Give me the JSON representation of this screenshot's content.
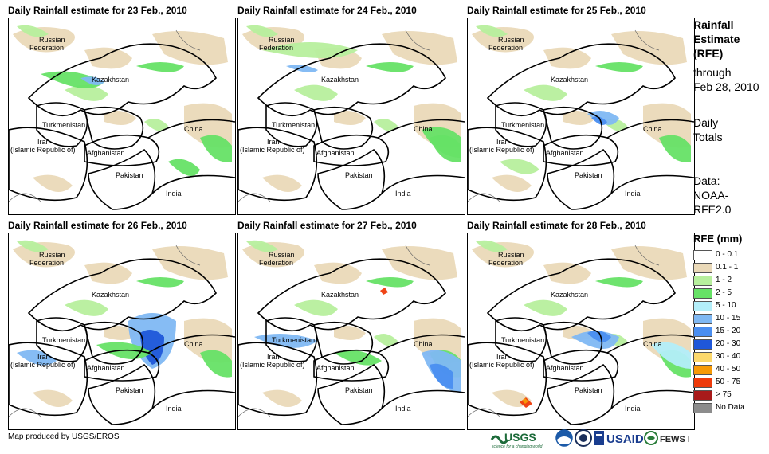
{
  "panels": [
    {
      "title": "Daily Rainfall estimate for 23 Feb., 2010"
    },
    {
      "title": "Daily Rainfall estimate for 24 Feb., 2010"
    },
    {
      "title": "Daily Rainfall estimate for 25 Feb., 2010"
    },
    {
      "title": "Daily Rainfall estimate for 26 Feb., 2010"
    },
    {
      "title": "Daily Rainfall estimate for 27 Feb., 2010"
    },
    {
      "title": "Daily Rainfall estimate for 28 Feb., 2010"
    }
  ],
  "map_labels": {
    "russia_1": "Russian",
    "russia_2": "Federation",
    "kazakhstan": "Kazakhstan",
    "turkmenistan": "Turkmenistan",
    "china": "China",
    "iran_1": "Iran",
    "iran_2": "(Islamic Republic of)",
    "afghanistan": "Afghanistan",
    "pakistan": "Pakistan",
    "india": "India"
  },
  "side": {
    "title_1": "Rainfall",
    "title_2": "Estimate",
    "title_3": "(RFE)",
    "through": "through",
    "date": "Feb 28, 2010",
    "daily": "Daily",
    "totals": "Totals",
    "data": "Data:",
    "source_1": "NOAA-",
    "source_2": "RFE2.0"
  },
  "legend": {
    "title": "RFE (mm)",
    "items": [
      {
        "label": "0 - 0.1",
        "color": "#ffffff"
      },
      {
        "label": "0.1 - 1",
        "color": "#ead9b8"
      },
      {
        "label": "1 - 2",
        "color": "#b7ef9d"
      },
      {
        "label": "2 - 5",
        "color": "#66e266"
      },
      {
        "label": "5 - 10",
        "color": "#b3eef9"
      },
      {
        "label": "10 - 15",
        "color": "#7fb8f3"
      },
      {
        "label": "15 - 20",
        "color": "#4a8ef0"
      },
      {
        "label": "20 - 30",
        "color": "#1f57d9"
      },
      {
        "label": "30 - 40",
        "color": "#fcd86b"
      },
      {
        "label": "40 - 50",
        "color": "#f79a06"
      },
      {
        "label": "50 - 75",
        "color": "#ee3a0a"
      },
      {
        "label": "> 75",
        "color": "#a81a1a"
      },
      {
        "label": "No Data",
        "color": "#8c8c8c"
      }
    ]
  },
  "credit": "Map produced by USGS/EROS",
  "logos": {
    "usgs": "USGS",
    "usgs_tagline": "science for a changing world",
    "usaid": "USAID",
    "fewsnet": "FEWS NET"
  }
}
